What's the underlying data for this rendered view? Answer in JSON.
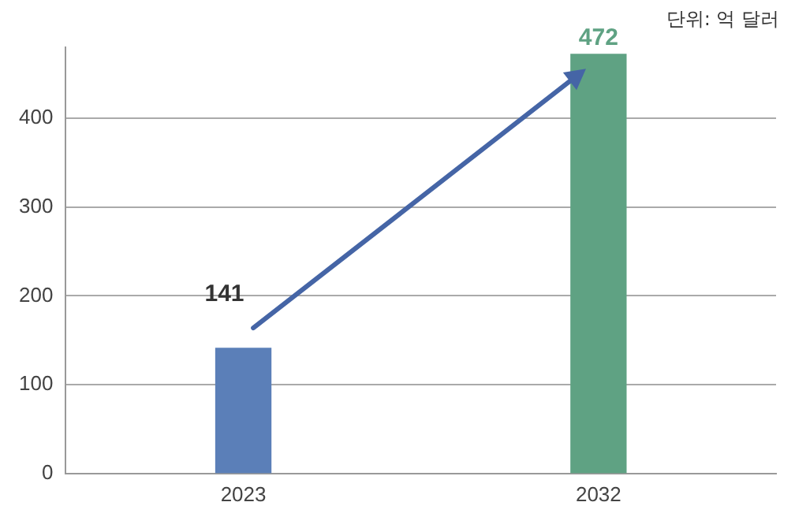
{
  "chart_data": {
    "type": "bar",
    "categories": [
      "2023",
      "2032"
    ],
    "values": [
      141,
      472
    ],
    "colors": [
      "#5b7fb8",
      "#5fa283"
    ],
    "ylim": [
      0,
      480
    ],
    "yticks": [
      0,
      100,
      200,
      300,
      400
    ],
    "grid": "y",
    "data_labels": true,
    "annotations": [
      "단위: 억 달러"
    ]
  }
}
